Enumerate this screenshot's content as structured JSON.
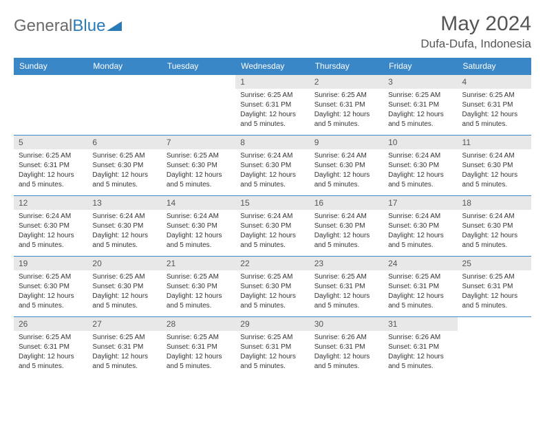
{
  "logo": {
    "text_gray": "General",
    "text_blue": "Blue"
  },
  "title": "May 2024",
  "location": "Dufa-Dufa, Indonesia",
  "colors": {
    "header_bg": "#3a87c7",
    "header_text": "#ffffff",
    "daynum_bg": "#e8e8e8",
    "text_gray": "#555555",
    "border": "#3a87c7",
    "logo_gray": "#6a6a6a",
    "logo_blue": "#2a7ab8"
  },
  "weekdays": [
    "Sunday",
    "Monday",
    "Tuesday",
    "Wednesday",
    "Thursday",
    "Friday",
    "Saturday"
  ],
  "weeks": [
    [
      {
        "n": "",
        "sr": "",
        "ss": "",
        "dl": ""
      },
      {
        "n": "",
        "sr": "",
        "ss": "",
        "dl": ""
      },
      {
        "n": "",
        "sr": "",
        "ss": "",
        "dl": ""
      },
      {
        "n": "1",
        "sr": "Sunrise: 6:25 AM",
        "ss": "Sunset: 6:31 PM",
        "dl": "Daylight: 12 hours and 5 minutes."
      },
      {
        "n": "2",
        "sr": "Sunrise: 6:25 AM",
        "ss": "Sunset: 6:31 PM",
        "dl": "Daylight: 12 hours and 5 minutes."
      },
      {
        "n": "3",
        "sr": "Sunrise: 6:25 AM",
        "ss": "Sunset: 6:31 PM",
        "dl": "Daylight: 12 hours and 5 minutes."
      },
      {
        "n": "4",
        "sr": "Sunrise: 6:25 AM",
        "ss": "Sunset: 6:31 PM",
        "dl": "Daylight: 12 hours and 5 minutes."
      }
    ],
    [
      {
        "n": "5",
        "sr": "Sunrise: 6:25 AM",
        "ss": "Sunset: 6:31 PM",
        "dl": "Daylight: 12 hours and 5 minutes."
      },
      {
        "n": "6",
        "sr": "Sunrise: 6:25 AM",
        "ss": "Sunset: 6:30 PM",
        "dl": "Daylight: 12 hours and 5 minutes."
      },
      {
        "n": "7",
        "sr": "Sunrise: 6:25 AM",
        "ss": "Sunset: 6:30 PM",
        "dl": "Daylight: 12 hours and 5 minutes."
      },
      {
        "n": "8",
        "sr": "Sunrise: 6:24 AM",
        "ss": "Sunset: 6:30 PM",
        "dl": "Daylight: 12 hours and 5 minutes."
      },
      {
        "n": "9",
        "sr": "Sunrise: 6:24 AM",
        "ss": "Sunset: 6:30 PM",
        "dl": "Daylight: 12 hours and 5 minutes."
      },
      {
        "n": "10",
        "sr": "Sunrise: 6:24 AM",
        "ss": "Sunset: 6:30 PM",
        "dl": "Daylight: 12 hours and 5 minutes."
      },
      {
        "n": "11",
        "sr": "Sunrise: 6:24 AM",
        "ss": "Sunset: 6:30 PM",
        "dl": "Daylight: 12 hours and 5 minutes."
      }
    ],
    [
      {
        "n": "12",
        "sr": "Sunrise: 6:24 AM",
        "ss": "Sunset: 6:30 PM",
        "dl": "Daylight: 12 hours and 5 minutes."
      },
      {
        "n": "13",
        "sr": "Sunrise: 6:24 AM",
        "ss": "Sunset: 6:30 PM",
        "dl": "Daylight: 12 hours and 5 minutes."
      },
      {
        "n": "14",
        "sr": "Sunrise: 6:24 AM",
        "ss": "Sunset: 6:30 PM",
        "dl": "Daylight: 12 hours and 5 minutes."
      },
      {
        "n": "15",
        "sr": "Sunrise: 6:24 AM",
        "ss": "Sunset: 6:30 PM",
        "dl": "Daylight: 12 hours and 5 minutes."
      },
      {
        "n": "16",
        "sr": "Sunrise: 6:24 AM",
        "ss": "Sunset: 6:30 PM",
        "dl": "Daylight: 12 hours and 5 minutes."
      },
      {
        "n": "17",
        "sr": "Sunrise: 6:24 AM",
        "ss": "Sunset: 6:30 PM",
        "dl": "Daylight: 12 hours and 5 minutes."
      },
      {
        "n": "18",
        "sr": "Sunrise: 6:24 AM",
        "ss": "Sunset: 6:30 PM",
        "dl": "Daylight: 12 hours and 5 minutes."
      }
    ],
    [
      {
        "n": "19",
        "sr": "Sunrise: 6:25 AM",
        "ss": "Sunset: 6:30 PM",
        "dl": "Daylight: 12 hours and 5 minutes."
      },
      {
        "n": "20",
        "sr": "Sunrise: 6:25 AM",
        "ss": "Sunset: 6:30 PM",
        "dl": "Daylight: 12 hours and 5 minutes."
      },
      {
        "n": "21",
        "sr": "Sunrise: 6:25 AM",
        "ss": "Sunset: 6:30 PM",
        "dl": "Daylight: 12 hours and 5 minutes."
      },
      {
        "n": "22",
        "sr": "Sunrise: 6:25 AM",
        "ss": "Sunset: 6:30 PM",
        "dl": "Daylight: 12 hours and 5 minutes."
      },
      {
        "n": "23",
        "sr": "Sunrise: 6:25 AM",
        "ss": "Sunset: 6:31 PM",
        "dl": "Daylight: 12 hours and 5 minutes."
      },
      {
        "n": "24",
        "sr": "Sunrise: 6:25 AM",
        "ss": "Sunset: 6:31 PM",
        "dl": "Daylight: 12 hours and 5 minutes."
      },
      {
        "n": "25",
        "sr": "Sunrise: 6:25 AM",
        "ss": "Sunset: 6:31 PM",
        "dl": "Daylight: 12 hours and 5 minutes."
      }
    ],
    [
      {
        "n": "26",
        "sr": "Sunrise: 6:25 AM",
        "ss": "Sunset: 6:31 PM",
        "dl": "Daylight: 12 hours and 5 minutes."
      },
      {
        "n": "27",
        "sr": "Sunrise: 6:25 AM",
        "ss": "Sunset: 6:31 PM",
        "dl": "Daylight: 12 hours and 5 minutes."
      },
      {
        "n": "28",
        "sr": "Sunrise: 6:25 AM",
        "ss": "Sunset: 6:31 PM",
        "dl": "Daylight: 12 hours and 5 minutes."
      },
      {
        "n": "29",
        "sr": "Sunrise: 6:25 AM",
        "ss": "Sunset: 6:31 PM",
        "dl": "Daylight: 12 hours and 5 minutes."
      },
      {
        "n": "30",
        "sr": "Sunrise: 6:26 AM",
        "ss": "Sunset: 6:31 PM",
        "dl": "Daylight: 12 hours and 5 minutes."
      },
      {
        "n": "31",
        "sr": "Sunrise: 6:26 AM",
        "ss": "Sunset: 6:31 PM",
        "dl": "Daylight: 12 hours and 5 minutes."
      },
      {
        "n": "",
        "sr": "",
        "ss": "",
        "dl": ""
      }
    ]
  ]
}
